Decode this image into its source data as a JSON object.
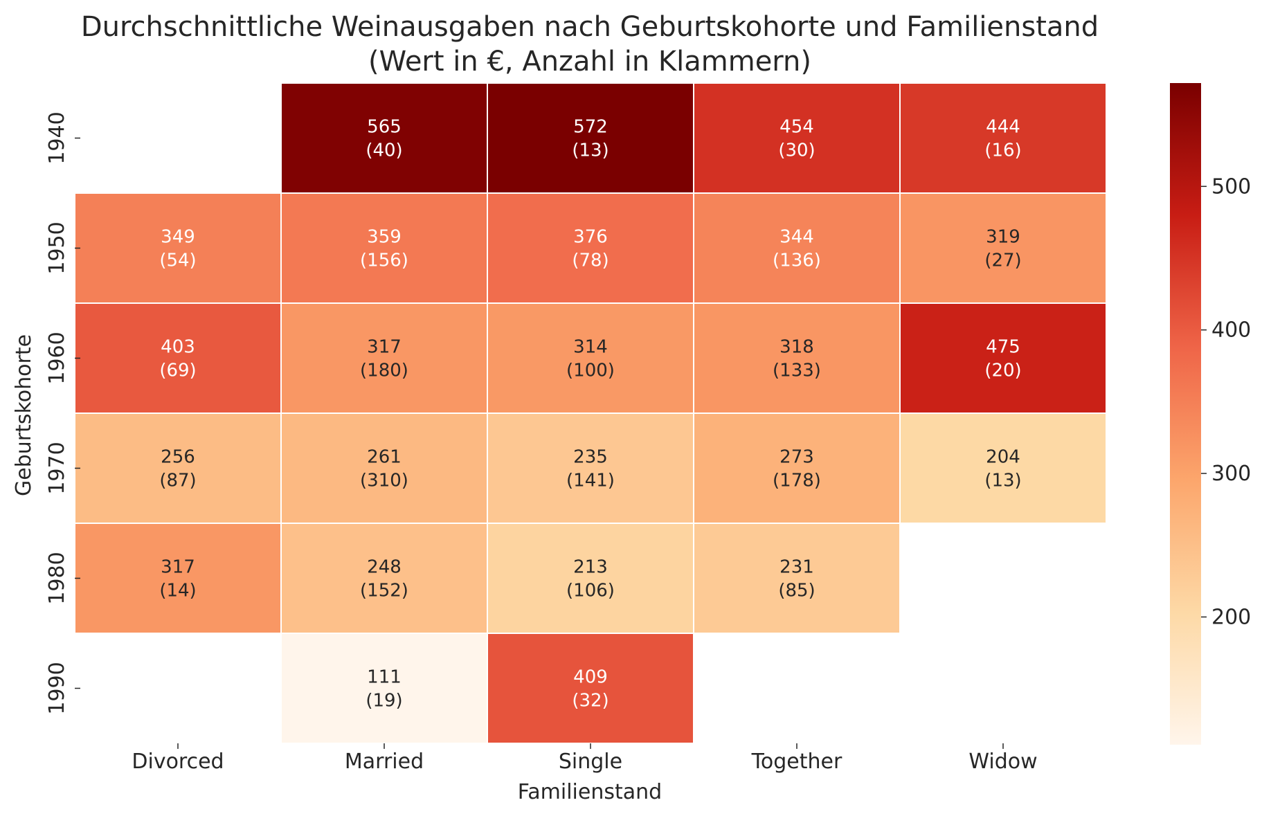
{
  "chart_data": {
    "type": "heatmap",
    "title": "Durchschnittliche Weinausgaben nach Geburtskohorte und Familienstand",
    "subtitle": "(Wert in €, Anzahl in Klammern)",
    "xlabel": "Familienstand",
    "ylabel": "Geburtskohorte",
    "x_categories": [
      "Divorced",
      "Married",
      "Single",
      "Together",
      "Widow"
    ],
    "y_categories": [
      "1940",
      "1950",
      "1960",
      "1970",
      "1980",
      "1990"
    ],
    "values": [
      [
        null,
        565,
        572,
        454,
        444
      ],
      [
        349,
        359,
        376,
        344,
        319
      ],
      [
        403,
        317,
        314,
        318,
        475
      ],
      [
        256,
        261,
        235,
        273,
        204
      ],
      [
        317,
        248,
        213,
        231,
        null
      ],
      [
        null,
        111,
        409,
        null,
        null
      ]
    ],
    "counts": [
      [
        null,
        "(40)",
        "(13)",
        "(30)",
        "(16)"
      ],
      [
        "(54)",
        "(156)",
        "(78)",
        "(136)",
        "(27)"
      ],
      [
        "(69)",
        "(180)",
        "(100)",
        "(133)",
        "(20)"
      ],
      [
        "(87)",
        "(310)",
        "(141)",
        "(178)",
        "(13)"
      ],
      [
        "(14)",
        "(152)",
        "(106)",
        "(85)",
        null
      ],
      [
        null,
        "(19)",
        "(32)",
        null,
        null
      ]
    ],
    "colorscale": "Oranges-Reds",
    "colorbar": {
      "range": [
        111,
        572
      ],
      "ticks": [
        "200",
        "300",
        "400",
        "500"
      ]
    },
    "grid": false,
    "legend": "colorbar-right"
  }
}
